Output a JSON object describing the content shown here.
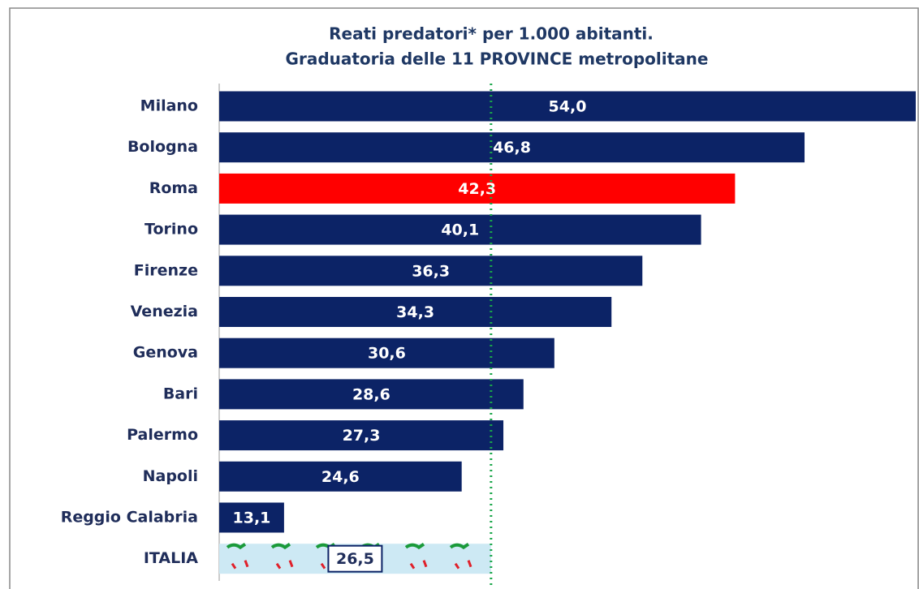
{
  "chart_data": {
    "type": "hbar",
    "title": "Reati predatori* per 1.000 abitanti.",
    "subtitle": "Graduatoria delle 11 PROVINCE metropolitane",
    "categories": [
      "Milano",
      "Bologna",
      "Roma",
      "Torino",
      "Firenze",
      "Venezia",
      "Genova",
      "Bari",
      "Palermo",
      "Napoli",
      "Reggio Calabria",
      "ITALIA"
    ],
    "values": [
      54.0,
      46.8,
      42.3,
      40.1,
      36.3,
      34.3,
      30.6,
      28.6,
      27.3,
      24.6,
      13.1,
      26.5
    ],
    "value_labels": [
      "54,0",
      "46,8",
      "42,3",
      "40,1",
      "36,3",
      "34,3",
      "30,6",
      "28,6",
      "27,3",
      "24,6",
      "13,1",
      "26,5"
    ],
    "colors": [
      "#0c2366",
      "#0c2366",
      "#ff0000",
      "#0c2366",
      "#0c2366",
      "#0c2366",
      "#0c2366",
      "#0c2366",
      "#0c2366",
      "#0c2366",
      "#0c2366",
      "#cde9f4"
    ],
    "xlim": [
      8.9,
      54.0
    ],
    "reference_line": {
      "value": 26.5,
      "color": "#1aa64a"
    }
  }
}
